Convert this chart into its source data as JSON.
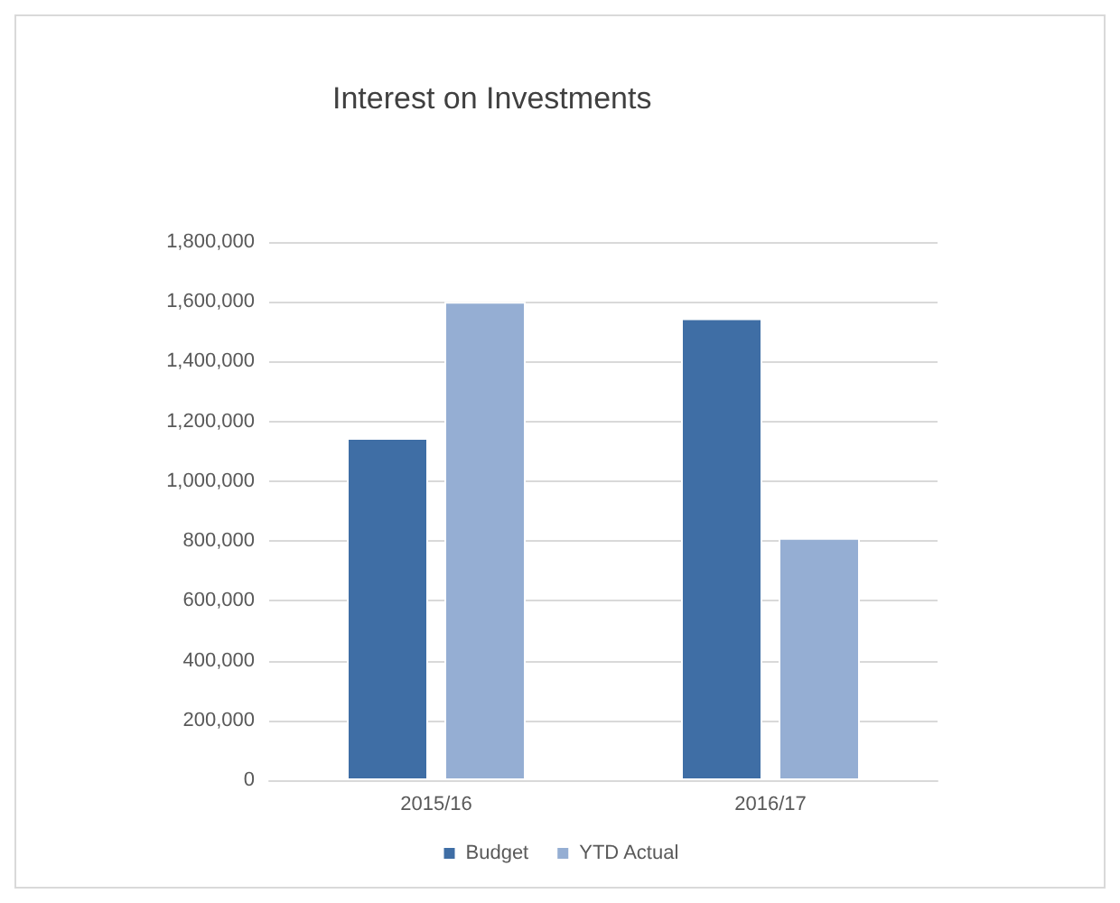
{
  "chart_data": {
    "type": "bar",
    "title": "Interest on Investments",
    "categories": [
      "2015/16",
      "2016/17"
    ],
    "series": [
      {
        "name": "Budget",
        "color": "#3f6ea5",
        "values": [
          1145000,
          1545000
        ]
      },
      {
        "name": "YTD Actual",
        "color": "#95aed3",
        "values": [
          1600000,
          810000
        ]
      }
    ],
    "ylim": [
      0,
      1800000
    ],
    "yticks": [
      {
        "value": 0,
        "label": "0"
      },
      {
        "value": 200000,
        "label": "200,000"
      },
      {
        "value": 400000,
        "label": "400,000"
      },
      {
        "value": 600000,
        "label": "600,000"
      },
      {
        "value": 800000,
        "label": "800,000"
      },
      {
        "value": 1000000,
        "label": "1,000,000"
      },
      {
        "value": 1200000,
        "label": "1,200,000"
      },
      {
        "value": 1400000,
        "label": "1,400,000"
      },
      {
        "value": 1600000,
        "label": "1,600,000"
      },
      {
        "value": 1800000,
        "label": "1,800,000"
      }
    ],
    "grid": "y",
    "legend": "bottom"
  }
}
